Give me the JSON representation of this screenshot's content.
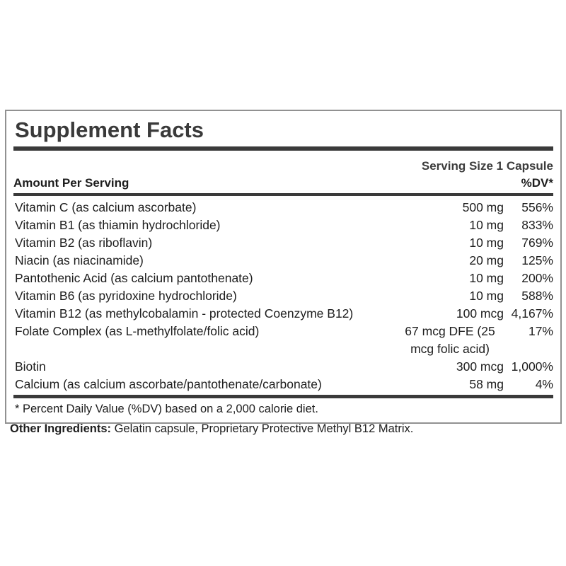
{
  "label": {
    "title": "Supplement Facts",
    "serving_size": "Serving Size 1 Capsule",
    "columns": {
      "amount_header": "Amount Per Serving",
      "dv_header": "%DV*"
    },
    "rows": [
      {
        "name": "Vitamin C (as calcium ascorbate)",
        "amount": "500 mg",
        "dv": "556%"
      },
      {
        "name": "Vitamin B1 (as thiamin hydrochloride)",
        "amount": "10 mg",
        "dv": "833%"
      },
      {
        "name": "Vitamin B2 (as riboflavin)",
        "amount": "10 mg",
        "dv": "769%"
      },
      {
        "name": "Niacin (as niacinamide)",
        "amount": "20 mg",
        "dv": "125%"
      },
      {
        "name": "Pantothenic Acid (as calcium pantothenate)",
        "amount": "10 mg",
        "dv": "200%"
      },
      {
        "name": "Vitamin B6 (as pyridoxine hydrochloride)",
        "amount": "10 mg",
        "dv": "588%"
      },
      {
        "name": "Vitamin B12 (as methylcobalamin - protected Coenzyme B12)",
        "amount": "100 mcg",
        "dv": "4,167%"
      },
      {
        "name": "Folate Complex (as L-methylfolate/folic acid)",
        "amount": "67 mcg DFE (25 mcg folic acid)",
        "dv": "17%"
      },
      {
        "name": "Biotin",
        "amount": "300 mcg",
        "dv": "1,000%"
      },
      {
        "name": "Calcium (as calcium ascorbate/pantothenate/carbonate)",
        "amount": "58 mg",
        "dv": "4%"
      }
    ],
    "footnote": "* Percent Daily Value (%DV) based on a 2,000 calorie diet.",
    "other_ingredients_label": "Other Ingredients:",
    "other_ingredients_text": " Gelatin capsule, Proprietary Protective Methyl B12 Matrix.",
    "colors": {
      "text": "#1d1d1d",
      "title": "#3a3a3a",
      "rule": "#3a3a3a",
      "border": "#919191",
      "background": "#ffffff"
    }
  }
}
